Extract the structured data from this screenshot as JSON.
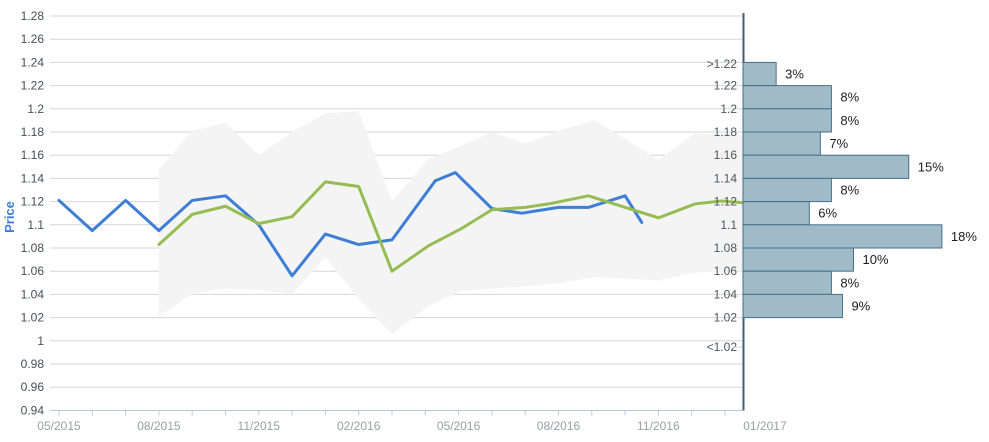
{
  "y_axis": {
    "title": "Price",
    "ticks": [
      {
        "label": "1.28",
        "value": 1.28
      },
      {
        "label": "1.26",
        "value": 1.26
      },
      {
        "label": "1.24",
        "value": 1.24
      },
      {
        "label": "1.22",
        "value": 1.22
      },
      {
        "label": "1.2",
        "value": 1.2
      },
      {
        "label": "1.18",
        "value": 1.18
      },
      {
        "label": "1.16",
        "value": 1.16
      },
      {
        "label": "1.14",
        "value": 1.14
      },
      {
        "label": "1.12",
        "value": 1.12
      },
      {
        "label": "1.1",
        "value": 1.1
      },
      {
        "label": "1.08",
        "value": 1.08
      },
      {
        "label": "1.06",
        "value": 1.06
      },
      {
        "label": "1.04",
        "value": 1.04
      },
      {
        "label": "1.02",
        "value": 1.02
      },
      {
        "label": "1",
        "value": 1.0
      },
      {
        "label": "0.98",
        "value": 0.98
      },
      {
        "label": "0.96",
        "value": 0.96
      },
      {
        "label": "0.94",
        "value": 0.94
      }
    ],
    "range": [
      0.94,
      1.28
    ]
  },
  "x_axis": {
    "unit": "months since 05/2015",
    "minor_tick_every_months": 1,
    "ticks": [
      {
        "label": "05/2015",
        "m": 0
      },
      {
        "label": "08/2015",
        "m": 3
      },
      {
        "label": "11/2015",
        "m": 6
      },
      {
        "label": "02/2016",
        "m": 9
      },
      {
        "label": "05/2016",
        "m": 12
      },
      {
        "label": "08/2016",
        "m": 15
      },
      {
        "label": "11/2016",
        "m": 18
      },
      {
        "label": "01/2017",
        "m": 21.2
      }
    ]
  },
  "chart_data": {
    "type": "line",
    "title": "",
    "xlabel": "",
    "ylabel": "Price",
    "ylim": [
      0.94,
      1.28
    ],
    "grid": true,
    "x_unit": "months since 05/2015",
    "series": [
      {
        "name": "price-history",
        "color": "#3e7ed7",
        "points": [
          [
            0,
            1.121
          ],
          [
            1,
            1.095
          ],
          [
            2,
            1.121
          ],
          [
            3,
            1.095
          ],
          [
            4,
            1.121
          ],
          [
            5,
            1.125
          ],
          [
            6,
            1.1
          ],
          [
            7,
            1.056
          ],
          [
            8,
            1.092
          ],
          [
            9,
            1.083
          ],
          [
            10,
            1.087
          ],
          [
            11.3,
            1.138
          ],
          [
            11.9,
            1.145
          ],
          [
            13,
            1.114
          ],
          [
            13.9,
            1.11
          ],
          [
            15,
            1.115
          ],
          [
            15.9,
            1.115
          ],
          [
            17,
            1.125
          ],
          [
            17.5,
            1.102
          ]
        ]
      },
      {
        "name": "forecast-trend",
        "color": "#96bd53",
        "points": [
          [
            3,
            1.083
          ],
          [
            4,
            1.109
          ],
          [
            5,
            1.116
          ],
          [
            6,
            1.101
          ],
          [
            7,
            1.107
          ],
          [
            8,
            1.137
          ],
          [
            9,
            1.133
          ],
          [
            10,
            1.06
          ],
          [
            11.1,
            1.082
          ],
          [
            12.1,
            1.097
          ],
          [
            13,
            1.113
          ],
          [
            14,
            1.115
          ],
          [
            14.7,
            1.118
          ],
          [
            15.9,
            1.125
          ],
          [
            18,
            1.106
          ],
          [
            19.1,
            1.118
          ],
          [
            19.9,
            1.1205
          ],
          [
            20.55,
            1.119
          ]
        ]
      }
    ],
    "range_band": {
      "name": "forecast-range",
      "fill": "#f4f4f4",
      "points": [
        [
          3,
          1.021,
          1.148
        ],
        [
          4,
          1.041,
          1.181
        ],
        [
          5,
          1.045,
          1.188
        ],
        [
          6,
          1.044,
          1.16
        ],
        [
          7,
          1.04,
          1.18
        ],
        [
          8,
          1.072,
          1.196
        ],
        [
          9,
          1.036,
          1.198
        ],
        [
          10,
          1.006,
          1.12
        ],
        [
          11.1,
          1.03,
          1.157
        ],
        [
          12.1,
          1.043,
          1.168
        ],
        [
          13,
          1.045,
          1.18
        ],
        [
          14,
          1.047,
          1.17
        ],
        [
          15.1,
          1.05,
          1.182
        ],
        [
          16.1,
          1.055,
          1.19
        ],
        [
          18,
          1.052,
          1.156
        ],
        [
          19.1,
          1.059,
          1.179
        ],
        [
          20.55,
          1.06,
          1.177
        ]
      ]
    },
    "distribution": {
      "type": "bar",
      "orientation": "horizontal",
      "bar_fill": "#a1bac8",
      "bar_stroke": "#45708a",
      "bins": [
        {
          "from": 1.24,
          "to": 1.22,
          "pct": 3,
          "pct_label": "3%"
        },
        {
          "from": 1.22,
          "to": 1.2,
          "pct": 8,
          "pct_label": "8%"
        },
        {
          "from": 1.2,
          "to": 1.18,
          "pct": 8,
          "pct_label": "8%"
        },
        {
          "from": 1.18,
          "to": 1.16,
          "pct": 7,
          "pct_label": "7%"
        },
        {
          "from": 1.16,
          "to": 1.14,
          "pct": 15,
          "pct_label": "15%"
        },
        {
          "from": 1.14,
          "to": 1.12,
          "pct": 8,
          "pct_label": "8%"
        },
        {
          "from": 1.12,
          "to": 1.1,
          "pct": 6,
          "pct_label": "6%"
        },
        {
          "from": 1.1,
          "to": 1.08,
          "pct": 18,
          "pct_label": "18%"
        },
        {
          "from": 1.08,
          "to": 1.06,
          "pct": 10,
          "pct_label": "10%"
        },
        {
          "from": 1.06,
          "to": 1.04,
          "pct": 8,
          "pct_label": "8%"
        },
        {
          "from": 1.04,
          "to": 1.02,
          "pct": 9,
          "pct_label": "9%"
        }
      ],
      "edge_labels": [
        {
          "text": ">1.22",
          "value": 1.2385
        },
        {
          "text": "1.22",
          "value": 1.22
        },
        {
          "text": "1.2",
          "value": 1.2
        },
        {
          "text": "1.18",
          "value": 1.18
        },
        {
          "text": "1.16",
          "value": 1.16
        },
        {
          "text": "1.14",
          "value": 1.14
        },
        {
          "text": "1.12",
          "value": 1.12
        },
        {
          "text": "1.1",
          "value": 1.1
        },
        {
          "text": "1.08",
          "value": 1.08
        },
        {
          "text": "1.06",
          "value": 1.06
        },
        {
          "text": "1.04",
          "value": 1.04
        },
        {
          "text": "1.02",
          "value": 1.02
        },
        {
          "text": "<1.02",
          "value": 0.9945
        }
      ]
    }
  },
  "colors": {
    "grid": "#d6d6d6",
    "axis": "#b9c9da",
    "y_label_color": "#474f58",
    "x_label_color": "#9a9fa4",
    "bin_label_color": "#4d565e",
    "pct_label_color": "#1e1e1e",
    "y_title_color": "#3e7ed7",
    "hist_axis": "#3f5d70",
    "background": "#ffffff"
  }
}
